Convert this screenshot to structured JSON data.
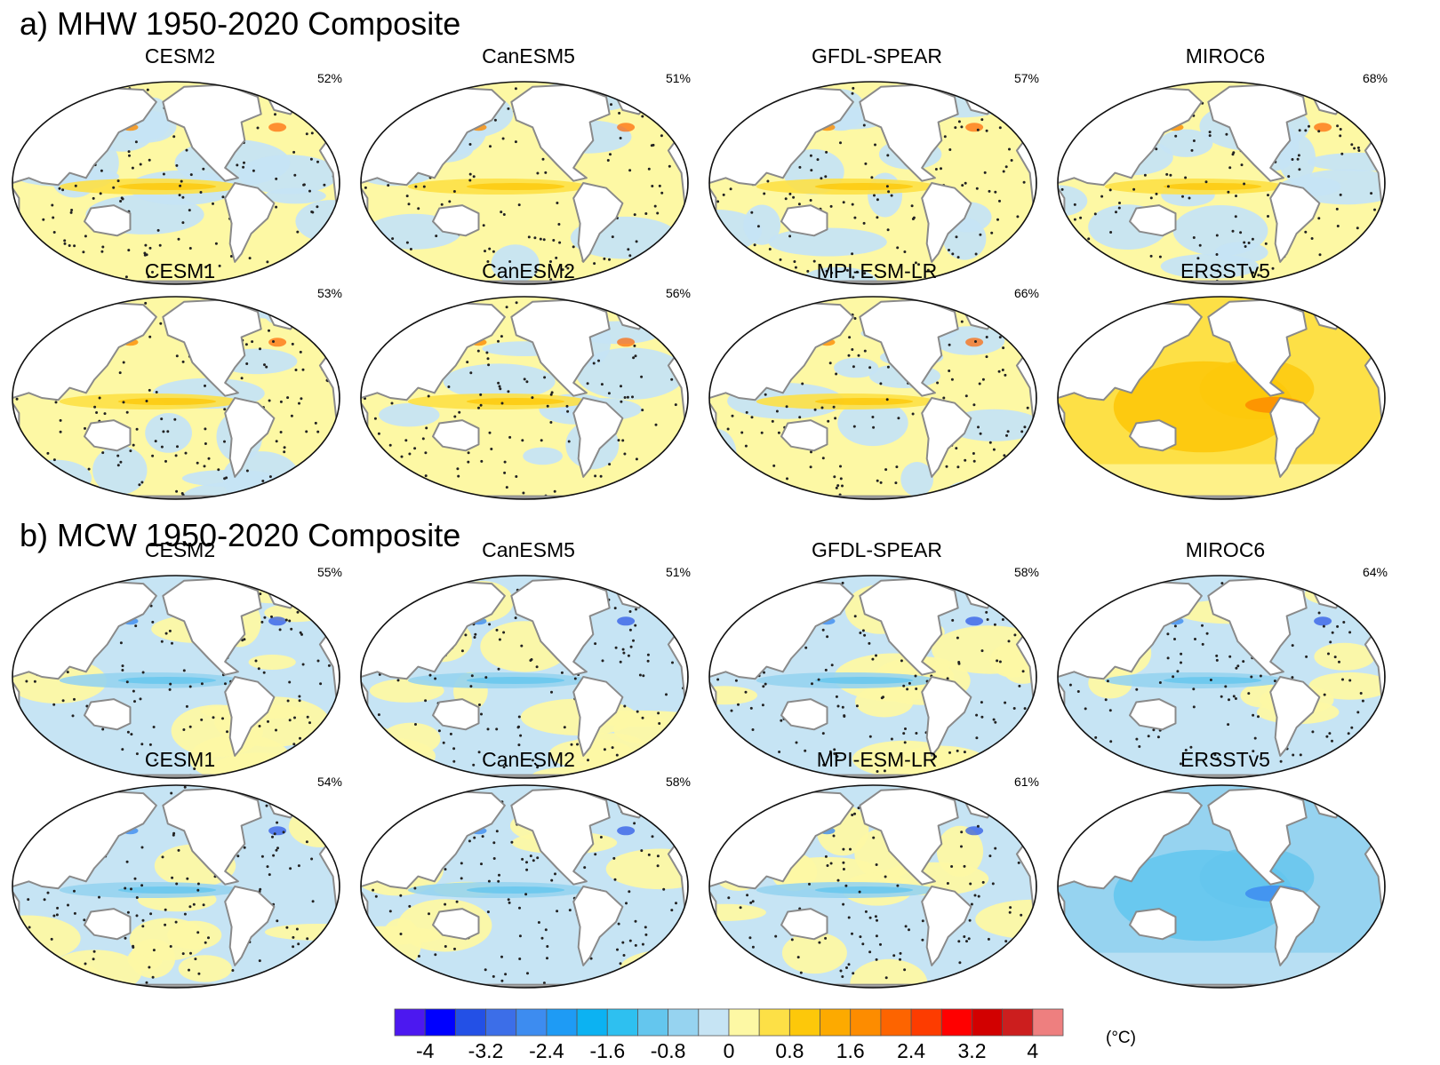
{
  "sections": [
    {
      "title": "a) MHW 1950-2020 Composite",
      "kind": "warm",
      "panels": [
        {
          "model": "CESM2",
          "pct": "52%"
        },
        {
          "model": "CanESM5",
          "pct": "51%"
        },
        {
          "model": "GFDL-SPEAR",
          "pct": "57%"
        },
        {
          "model": "MIROC6",
          "pct": "68%"
        },
        {
          "model": "CESM1",
          "pct": "53%"
        },
        {
          "model": "CanESM2",
          "pct": "56%"
        },
        {
          "model": "MPI-ESM-LR",
          "pct": "66%"
        },
        {
          "model": "ERSSTv5",
          "pct": ""
        }
      ]
    },
    {
      "title": "b) MCW 1950-2020 Composite",
      "kind": "cold",
      "panels": [
        {
          "model": "CESM2",
          "pct": "55%"
        },
        {
          "model": "CanESM5",
          "pct": "51%"
        },
        {
          "model": "GFDL-SPEAR",
          "pct": "58%"
        },
        {
          "model": "MIROC6",
          "pct": "64%"
        },
        {
          "model": "CESM1",
          "pct": "54%"
        },
        {
          "model": "CanESM2",
          "pct": "58%"
        },
        {
          "model": "MPI-ESM-LR",
          "pct": "61%"
        },
        {
          "model": "ERSSTv5",
          "pct": ""
        }
      ]
    }
  ],
  "colorbar": {
    "unit": "(°C)",
    "colors": [
      "#4c18f0",
      "#0000ff",
      "#2350e6",
      "#3c6ee8",
      "#3d8cf0",
      "#1e9bf5",
      "#0cb2f2",
      "#2ec0f0",
      "#64c6ee",
      "#96d3f0",
      "#c6e4f4",
      "#fdf8a4",
      "#fde046",
      "#fdc80a",
      "#fdaa00",
      "#fd8c00",
      "#fd6400",
      "#fd3c00",
      "#ff0000",
      "#d20000",
      "#cc1e1e",
      "#ee7f7f"
    ],
    "ticks": [
      "-4",
      "-3.2",
      "-2.4",
      "-1.6",
      "-0.8",
      "0",
      "0.8",
      "1.6",
      "2.4",
      "3.2",
      "4"
    ]
  }
}
